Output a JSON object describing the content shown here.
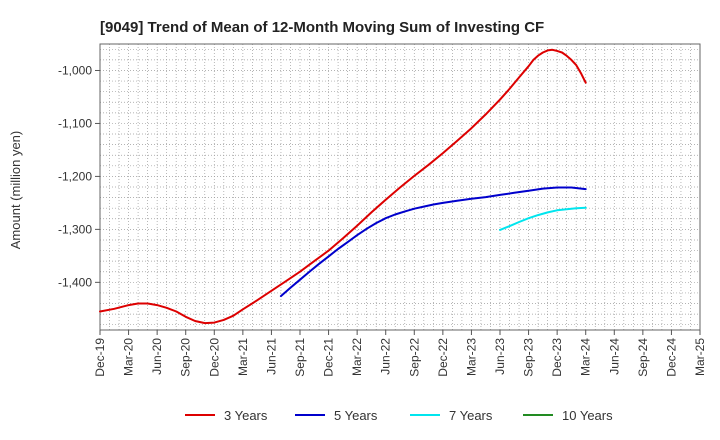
{
  "chart_data": {
    "type": "line",
    "title": "[9049]  Trend of Mean of 12-Month Moving Sum of Investing CF",
    "xlabel": "",
    "ylabel": "Amount (million yen)",
    "ylim": [
      -1490,
      -950
    ],
    "yticks": [
      -1000,
      -1100,
      -1200,
      -1300,
      -1400
    ],
    "ytick_labels": [
      "-1,000",
      "-1,100",
      "-1,200",
      "-1,300",
      "-1,400"
    ],
    "categories": [
      "Dec-19",
      "Mar-20",
      "Jun-20",
      "Sep-20",
      "Dec-20",
      "Mar-21",
      "Jun-21",
      "Sep-21",
      "Dec-21",
      "Mar-22",
      "Jun-22",
      "Sep-22",
      "Dec-22",
      "Mar-23",
      "Jun-23",
      "Sep-23",
      "Dec-23",
      "Mar-24",
      "Jun-24",
      "Sep-24",
      "Dec-24",
      "Mar-25"
    ],
    "grid": true,
    "legend_position": "bottom",
    "series": [
      {
        "name": "3 Years",
        "color": "#dd0000",
        "points": [
          [
            0,
            -1455
          ],
          [
            0.5,
            -1450
          ],
          [
            1,
            -1443
          ],
          [
            1.33,
            -1440
          ],
          [
            1.67,
            -1440
          ],
          [
            2,
            -1443
          ],
          [
            2.33,
            -1448
          ],
          [
            2.67,
            -1455
          ],
          [
            3,
            -1465
          ],
          [
            3.33,
            -1473
          ],
          [
            3.67,
            -1477
          ],
          [
            4,
            -1476
          ],
          [
            4.33,
            -1471
          ],
          [
            4.67,
            -1463
          ],
          [
            5,
            -1451
          ],
          [
            5.5,
            -1434
          ],
          [
            6,
            -1416
          ],
          [
            6.5,
            -1398
          ],
          [
            7,
            -1380
          ],
          [
            7.5,
            -1360
          ],
          [
            8,
            -1340
          ],
          [
            8.5,
            -1317
          ],
          [
            9,
            -1293
          ],
          [
            9.5,
            -1268
          ],
          [
            10,
            -1244
          ],
          [
            10.5,
            -1221
          ],
          [
            11,
            -1199
          ],
          [
            11.5,
            -1178
          ],
          [
            12,
            -1156
          ],
          [
            12.5,
            -1133
          ],
          [
            13,
            -1109
          ],
          [
            13.5,
            -1083
          ],
          [
            14,
            -1055
          ],
          [
            14.33,
            -1035
          ],
          [
            14.67,
            -1013
          ],
          [
            15,
            -992
          ],
          [
            15.17,
            -980
          ],
          [
            15.33,
            -972
          ],
          [
            15.5,
            -966
          ],
          [
            15.67,
            -962
          ],
          [
            15.83,
            -961
          ],
          [
            16,
            -963
          ],
          [
            16.17,
            -966
          ],
          [
            16.33,
            -972
          ],
          [
            16.5,
            -980
          ],
          [
            16.67,
            -990
          ],
          [
            16.83,
            -1005
          ],
          [
            17,
            -1023
          ]
        ]
      },
      {
        "name": "5 Years",
        "color": "#0000cc",
        "points": [
          [
            6.33,
            -1426
          ],
          [
            6.67,
            -1410
          ],
          [
            7,
            -1395
          ],
          [
            7.33,
            -1380
          ],
          [
            7.67,
            -1365
          ],
          [
            8,
            -1351
          ],
          [
            8.33,
            -1337
          ],
          [
            8.67,
            -1324
          ],
          [
            9,
            -1311
          ],
          [
            9.33,
            -1299
          ],
          [
            9.67,
            -1288
          ],
          [
            10,
            -1279
          ],
          [
            10.33,
            -1272
          ],
          [
            10.67,
            -1266
          ],
          [
            11,
            -1261
          ],
          [
            11.33,
            -1257
          ],
          [
            11.67,
            -1253
          ],
          [
            12,
            -1250
          ],
          [
            12.5,
            -1246
          ],
          [
            13,
            -1242
          ],
          [
            13.5,
            -1239
          ],
          [
            14,
            -1235
          ],
          [
            14.5,
            -1231
          ],
          [
            15,
            -1227
          ],
          [
            15.5,
            -1223
          ],
          [
            16,
            -1221
          ],
          [
            16.5,
            -1221
          ],
          [
            17,
            -1224
          ]
        ]
      },
      {
        "name": "7 Years",
        "color": "#00e5ee",
        "points": [
          [
            14,
            -1301
          ],
          [
            14.33,
            -1294
          ],
          [
            14.67,
            -1286
          ],
          [
            15,
            -1279
          ],
          [
            15.33,
            -1273
          ],
          [
            15.67,
            -1268
          ],
          [
            16,
            -1264
          ],
          [
            16.33,
            -1262
          ],
          [
            16.67,
            -1260
          ],
          [
            17,
            -1259
          ]
        ]
      },
      {
        "name": "10 Years",
        "color": "#228b22",
        "points": []
      }
    ]
  }
}
